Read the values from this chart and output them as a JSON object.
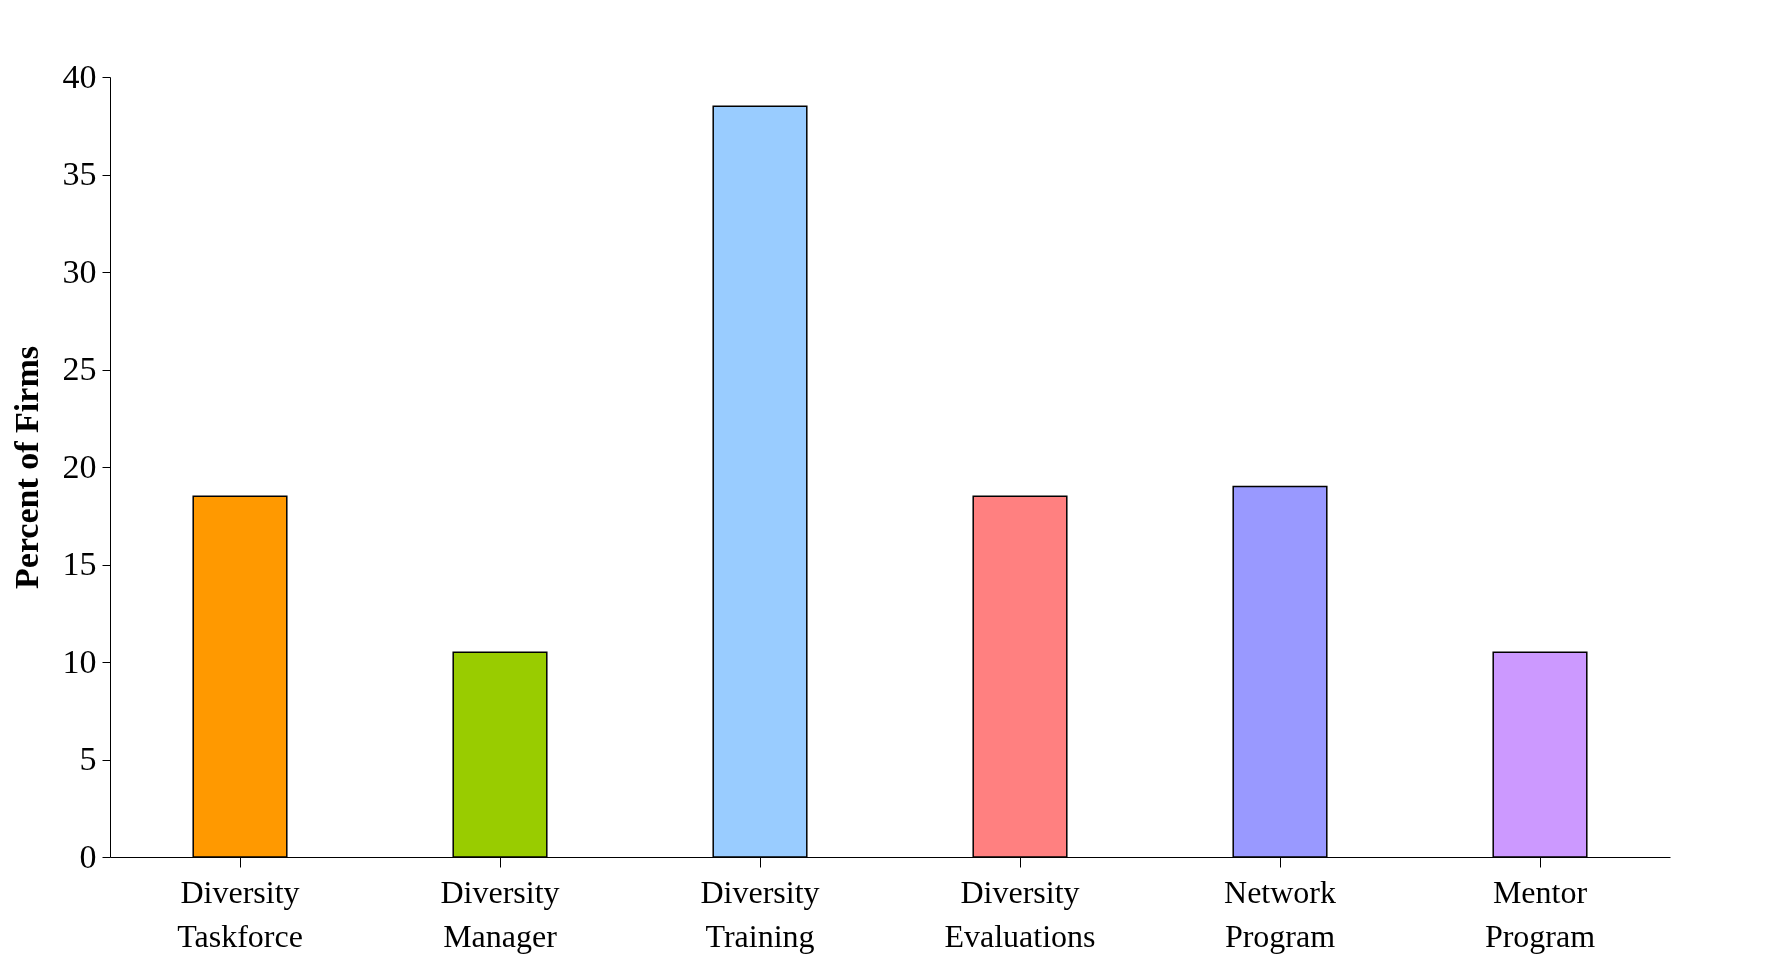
{
  "chart_data": {
    "type": "bar",
    "ylabel": "Percent of Firms",
    "categories": [
      "Diversity Taskforce",
      "Diversity Manager",
      "Diversity Training",
      "Diversity Evaluations",
      "Network Program",
      "Mentor Program"
    ],
    "values": [
      18.5,
      10.5,
      38.5,
      18.5,
      19,
      10.5
    ],
    "colors": [
      "#ff9900",
      "#99cc00",
      "#99ccff",
      "#ff8080",
      "#9999ff",
      "#cc99ff"
    ],
    "ylim": [
      0,
      40
    ],
    "yticks": [
      0,
      5,
      10,
      15,
      20,
      25,
      30,
      35,
      40
    ],
    "grid": false,
    "legend": false
  }
}
